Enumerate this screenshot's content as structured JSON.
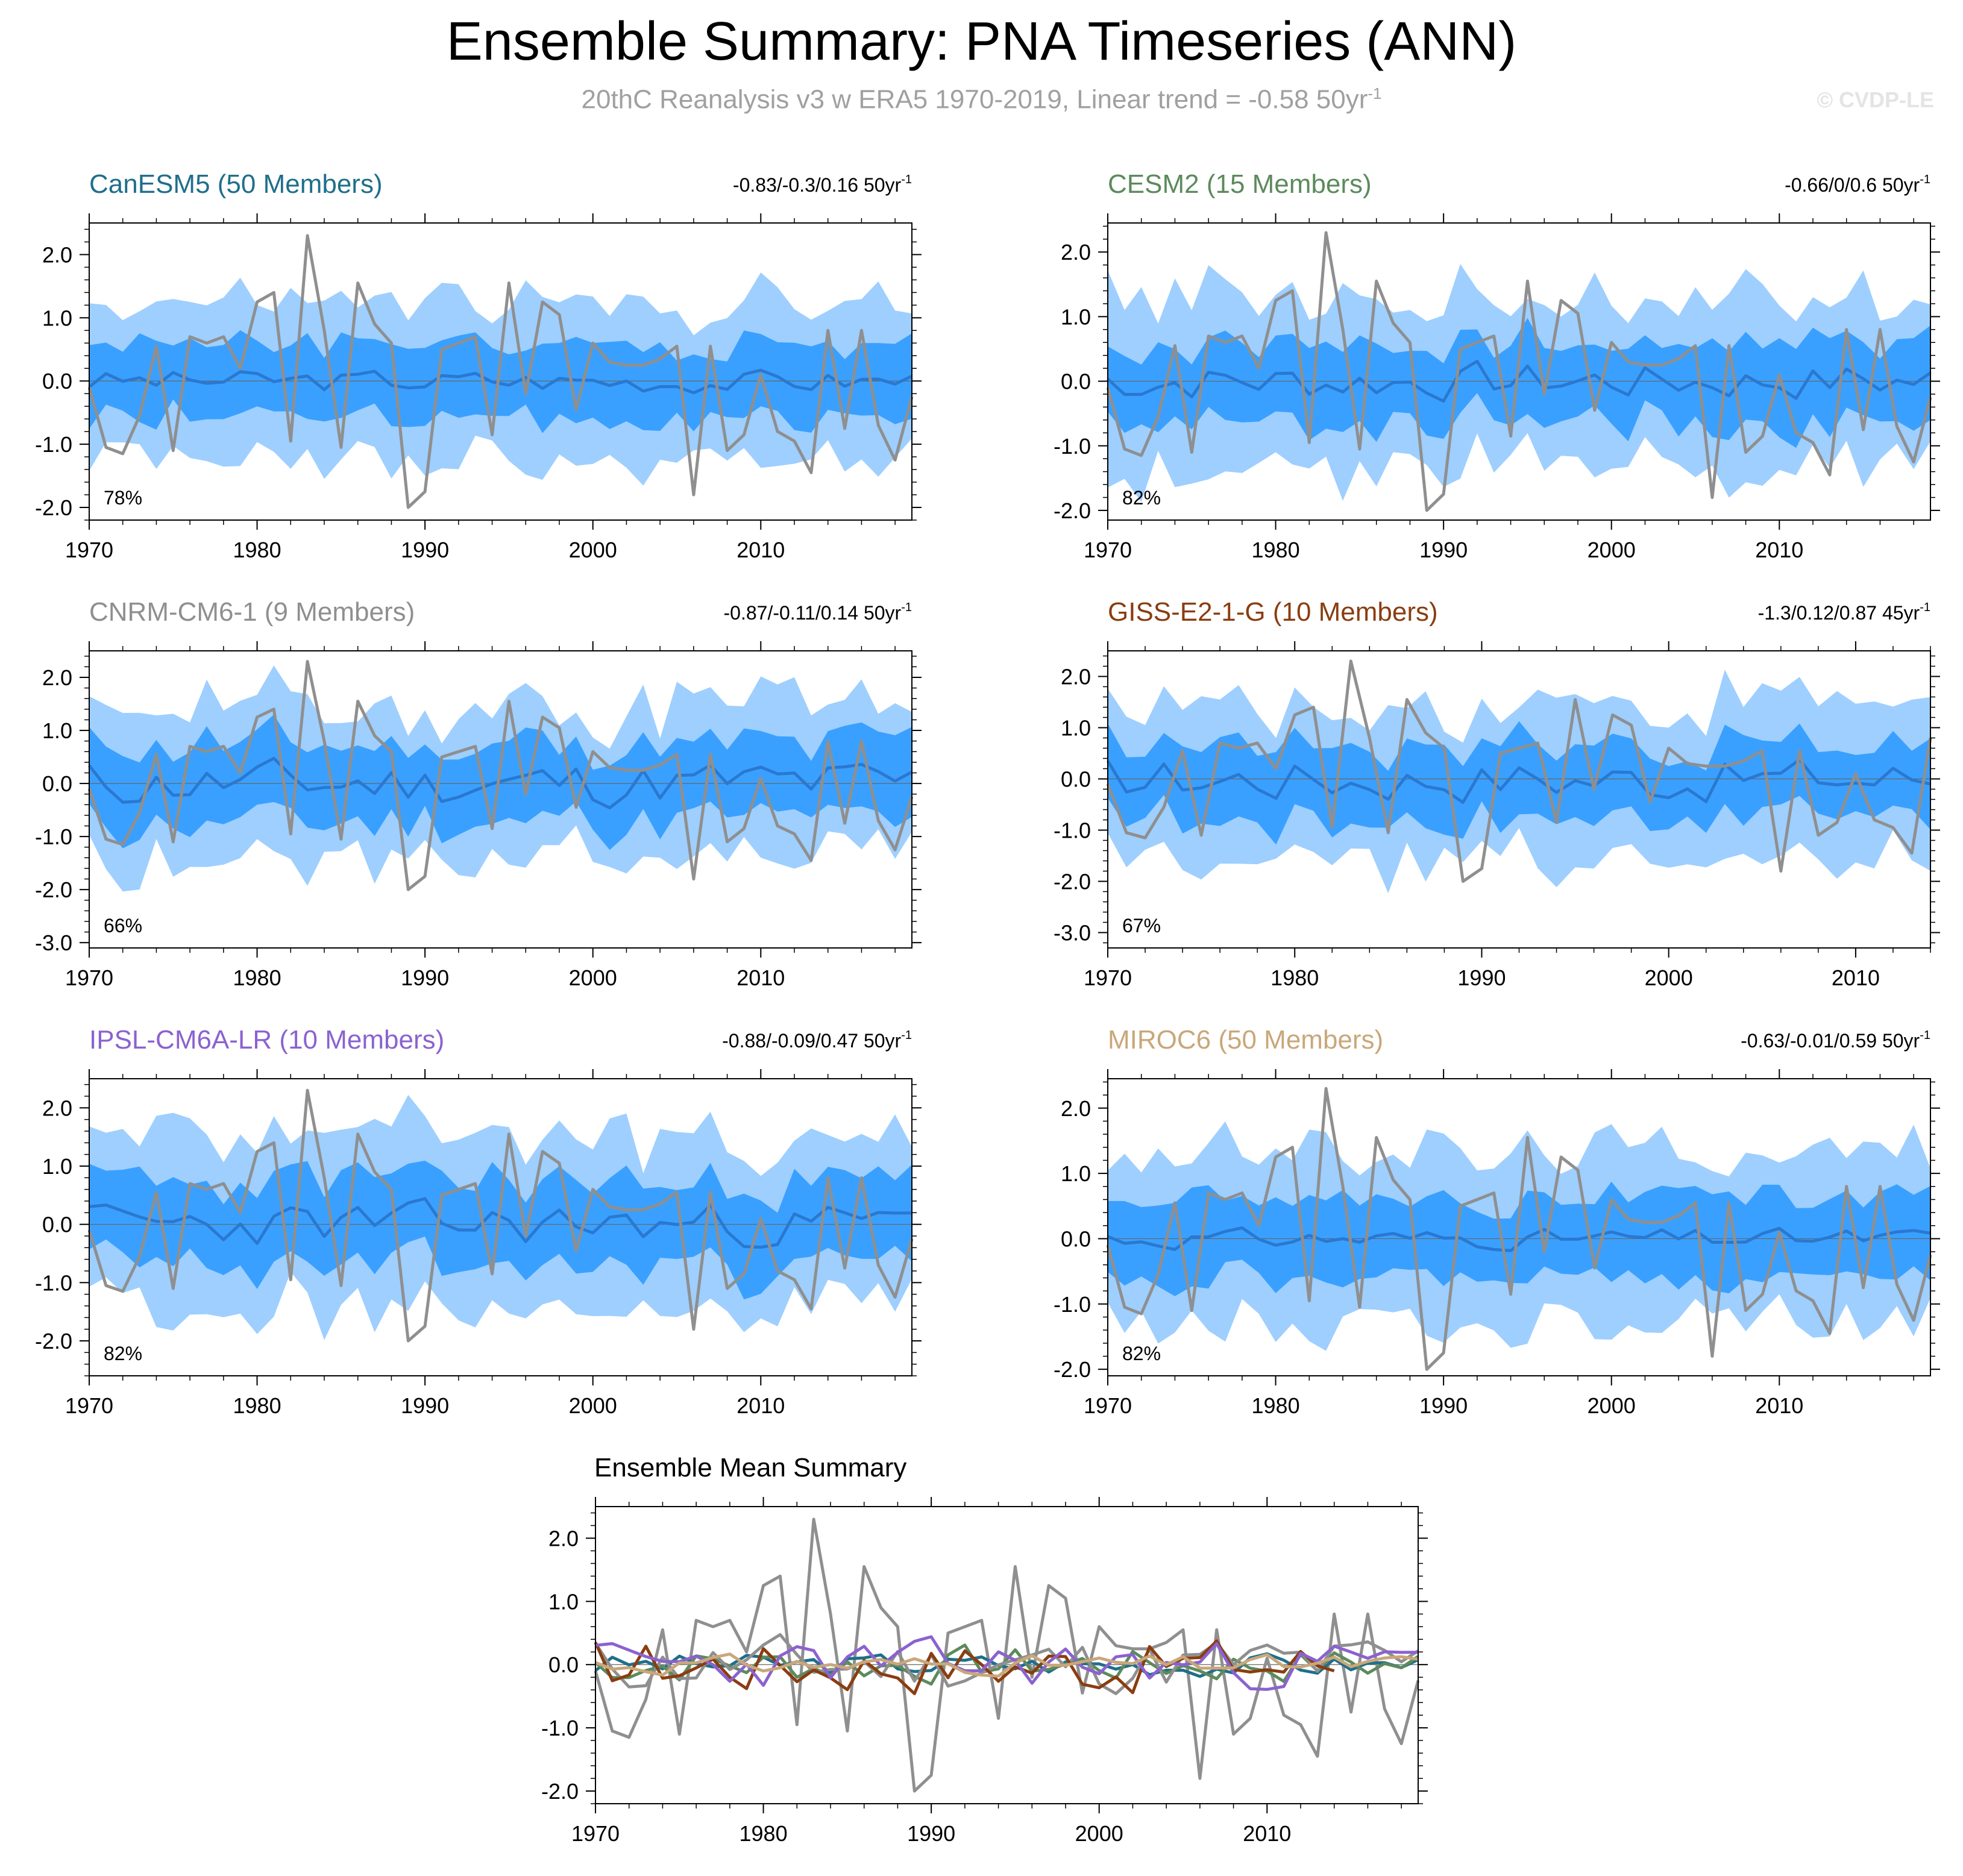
{
  "title": "Ensemble Summary: PNA Timeseries (ANN)",
  "subtitle": "20thC Reanalysis v3 w ERA5 1970-2019, Linear trend = -0.58 50yr",
  "subtitle_sup": "-1",
  "watermark": "© CVDP-LE",
  "colors": {
    "outer_band": "#9ecfff",
    "inner_band": "#3aa0ff",
    "ensemble_mean": "#2a78d0",
    "observed": "#8f8f8f",
    "CanESM5": "#1f6f8b",
    "CESM2": "#5c8a5c",
    "CNRM-CM6-1": "#8f8f8f",
    "GISS-E2-1-G": "#8a3d10",
    "IPSL-CM6A-LR": "#8b62d0",
    "MIROC6": "#c9a77a"
  },
  "chart_data": [
    {
      "type": "area",
      "title": "CanESM5 (50 Members)",
      "title_color": "#1f6f8b",
      "trend_label": "-0.83/-0.3/0.16 50yr",
      "trend_sup": "-1",
      "percent_label": "78%",
      "xlim": [
        1970,
        2019
      ],
      "ylim": [
        -2.2,
        2.5
      ],
      "yticks": [
        2.0,
        1.0,
        0.0,
        -1.0,
        -2.0
      ],
      "ytick_labels": [
        "2.0",
        "1.0",
        "0.0",
        "-1.0",
        "-2.0"
      ],
      "xticks": [
        1970,
        1980,
        1990,
        2000,
        2010
      ],
      "xtick_labels": [
        "1970",
        "1980",
        "1990",
        "2000",
        "2010"
      ],
      "outer_halfwidth": 1.2,
      "inner_halfwidth": 0.55,
      "mean_amp": 0.12,
      "seed": 3
    },
    {
      "type": "area",
      "title": "CESM2 (15 Members)",
      "title_color": "#5c8a5c",
      "trend_label": "-0.66/0/0.6 50yr",
      "trend_sup": "-1",
      "percent_label": "82%",
      "xlim": [
        1970,
        2019
      ],
      "ylim": [
        -2.15,
        2.45
      ],
      "yticks": [
        2.0,
        1.0,
        0.0,
        -1.0,
        -2.0
      ],
      "ytick_labels": [
        "2.0",
        "1.0",
        "0.0",
        "-1.0",
        "-2.0"
      ],
      "xticks": [
        1970,
        1980,
        1990,
        2000,
        2010
      ],
      "xtick_labels": [
        "1970",
        "1980",
        "1990",
        "2000",
        "2010"
      ],
      "outer_halfwidth": 1.3,
      "inner_halfwidth": 0.6,
      "mean_amp": 0.2,
      "seed": 7
    },
    {
      "type": "area",
      "title": "CNRM-CM6-1 (9 Members)",
      "title_color": "#8f8f8f",
      "trend_label": "-0.87/-0.11/0.14 50yr",
      "trend_sup": "-1",
      "percent_label": "66%",
      "xlim": [
        1970,
        2019
      ],
      "ylim": [
        -3.1,
        2.5
      ],
      "yticks": [
        2.0,
        1.0,
        0.0,
        -1.0,
        -2.0,
        -3.0
      ],
      "ytick_labels": [
        "2.0",
        "1.0",
        "0.0",
        "-1.0",
        "-2.0",
        "-3.0"
      ],
      "xticks": [
        1970,
        1980,
        1990,
        2000,
        2010
      ],
      "xtick_labels": [
        "1970",
        "1980",
        "1990",
        "2000",
        "2010"
      ],
      "outer_halfwidth": 1.4,
      "inner_halfwidth": 0.7,
      "mean_amp": 0.3,
      "seed": 11
    },
    {
      "type": "area",
      "title": "GISS-E2-1-G (10 Members)",
      "title_color": "#8a3d10",
      "trend_label": "-1.3/0.12/0.87 45yr",
      "trend_sup": "-1",
      "percent_label": "67%",
      "xlim": [
        1970,
        2014
      ],
      "ylim": [
        -3.3,
        2.5
      ],
      "yticks": [
        2.0,
        1.0,
        0.0,
        -1.0,
        -2.0,
        -3.0
      ],
      "ytick_labels": [
        "2.0",
        "1.0",
        "0.0",
        "-1.0",
        "-2.0",
        "-3.0"
      ],
      "xticks": [
        1970,
        1980,
        1990,
        2000,
        2010
      ],
      "xtick_labels": [
        "1970",
        "1980",
        "1990",
        "2000",
        "2010"
      ],
      "outer_halfwidth": 1.5,
      "inner_halfwidth": 0.7,
      "mean_amp": 0.3,
      "seed": 17
    },
    {
      "type": "area",
      "title": "IPSL-CM6A-LR (10 Members)",
      "title_color": "#8b62d0",
      "trend_label": "-0.88/-0.09/0.47 50yr",
      "trend_sup": "-1",
      "percent_label": "82%",
      "xlim": [
        1970,
        2019
      ],
      "ylim": [
        -2.6,
        2.5
      ],
      "yticks": [
        2.0,
        1.0,
        0.0,
        -1.0,
        -2.0
      ],
      "ytick_labels": [
        "2.0",
        "1.0",
        "0.0",
        "-1.0",
        "-2.0"
      ],
      "xticks": [
        1970,
        1980,
        1990,
        2000,
        2010
      ],
      "xtick_labels": [
        "1970",
        "1980",
        "1990",
        "2000",
        "2010"
      ],
      "outer_halfwidth": 1.45,
      "inner_halfwidth": 0.7,
      "mean_amp": 0.25,
      "seed": 23
    },
    {
      "type": "area",
      "title": "MIROC6 (50 Members)",
      "title_color": "#c9a77a",
      "trend_label": "-0.63/-0.01/0.59 50yr",
      "trend_sup": "-1",
      "percent_label": "82%",
      "xlim": [
        1970,
        2019
      ],
      "ylim": [
        -2.1,
        2.45
      ],
      "yticks": [
        2.0,
        1.0,
        0.0,
        -1.0,
        -2.0
      ],
      "ytick_labels": [
        "2.0",
        "1.0",
        "0.0",
        "-1.0",
        "-2.0"
      ],
      "xticks": [
        1970,
        1980,
        1990,
        2000,
        2010
      ],
      "xtick_labels": [
        "1970",
        "1980",
        "1990",
        "2000",
        "2010"
      ],
      "outer_halfwidth": 1.3,
      "inner_halfwidth": 0.62,
      "mean_amp": 0.1,
      "seed": 31
    },
    {
      "type": "line",
      "title": "Ensemble Mean Summary",
      "xlim": [
        1970,
        2019
      ],
      "ylim": [
        -2.2,
        2.5
      ],
      "yticks": [
        2.0,
        1.0,
        0.0,
        -1.0,
        -2.0
      ],
      "ytick_labels": [
        "2.0",
        "1.0",
        "0.0",
        "-1.0",
        "-2.0"
      ],
      "xticks": [
        1970,
        1980,
        1990,
        2000,
        2010
      ],
      "xtick_labels": [
        "1970",
        "1980",
        "1990",
        "2000",
        "2010"
      ],
      "observed": {
        "x": [
          1970,
          1971,
          1972,
          1973,
          1974,
          1975,
          1976,
          1977,
          1978,
          1979,
          1980,
          1981,
          1982,
          1983,
          1984,
          1985,
          1986,
          1987,
          1988,
          1989,
          1990,
          1991,
          1992,
          1993,
          1994,
          1995,
          1996,
          1997,
          1998,
          1999,
          2000,
          2001,
          2002,
          2003,
          2004,
          2005,
          2006,
          2007,
          2008,
          2009,
          2010,
          2011,
          2012,
          2013,
          2014,
          2015,
          2016,
          2017,
          2018,
          2019
        ],
        "y": [
          -0.1,
          -1.05,
          -1.15,
          -0.55,
          0.55,
          -1.1,
          0.7,
          0.6,
          0.7,
          0.2,
          1.25,
          1.4,
          -0.95,
          2.3,
          0.8,
          -1.05,
          1.55,
          0.9,
          0.6,
          -2.0,
          -1.75,
          0.5,
          0.6,
          0.7,
          -0.85,
          1.55,
          -0.2,
          1.25,
          1.05,
          -0.45,
          0.6,
          0.3,
          0.25,
          0.25,
          0.35,
          0.55,
          -1.8,
          0.55,
          -1.1,
          -0.85,
          0.1,
          -0.8,
          -0.95,
          -1.45,
          0.8,
          -0.75,
          0.8,
          -0.7,
          -1.25,
          -0.25
        ]
      },
      "series": [
        {
          "name": "CanESM5",
          "seed": 3,
          "amp": 0.12
        },
        {
          "name": "CESM2",
          "seed": 7,
          "amp": 0.2
        },
        {
          "name": "CNRM-CM6-1",
          "seed": 11,
          "amp": 0.3
        },
        {
          "name": "GISS-E2-1-G",
          "seed": 17,
          "amp": 0.3,
          "xmax": 2014
        },
        {
          "name": "IPSL-CM6A-LR",
          "seed": 23,
          "amp": 0.25
        },
        {
          "name": "MIROC6",
          "seed": 31,
          "amp": 0.1
        }
      ]
    }
  ]
}
